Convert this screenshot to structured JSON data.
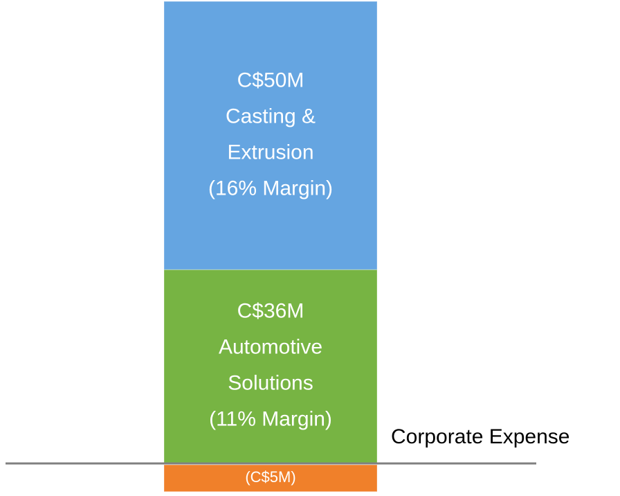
{
  "chart_data": {
    "type": "stacked-bar",
    "series": [
      {
        "name_lines": [
          "Automotive",
          "Solutions"
        ],
        "value": 36,
        "value_label": "C$36M",
        "margin_label": "(11% Margin)",
        "color": "#77b443"
      },
      {
        "name_lines": [
          "Casting &",
          "Extrusion"
        ],
        "value": 50,
        "value_label": "C$50M",
        "margin_label": "(16% Margin)",
        "color": "#65a5e1"
      },
      {
        "name": "Corporate Expense",
        "value": -5,
        "value_label": "(C$5M)",
        "color": "#f0802a"
      }
    ]
  }
}
